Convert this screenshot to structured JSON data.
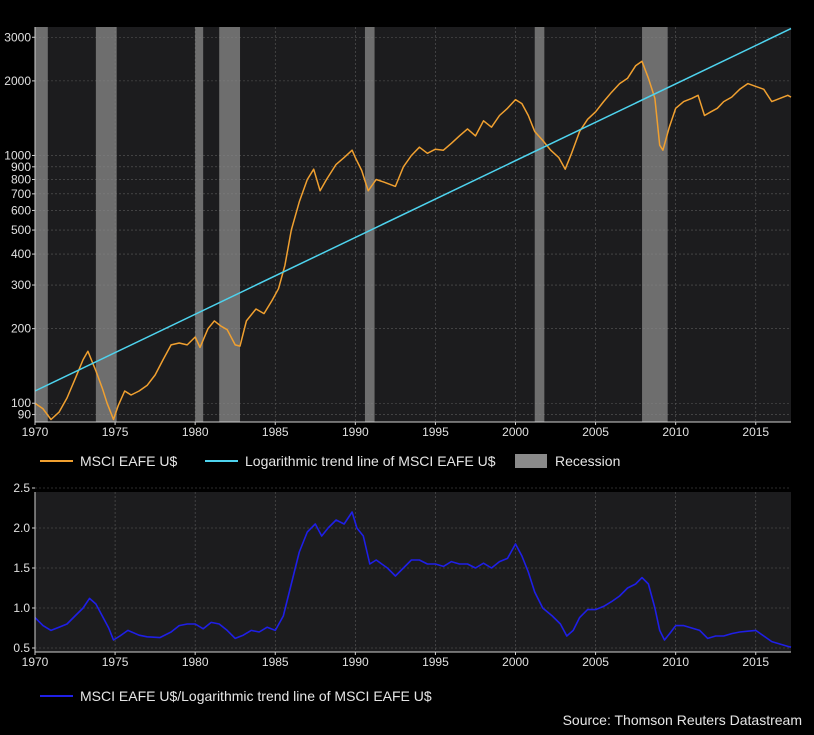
{
  "colors": {
    "background": "#000000",
    "plot_background": "#1c1c1e",
    "grid": "#5a5a5a",
    "index_line": "#f0a030",
    "trend_line": "#4ed3ee",
    "recession": "#8a8a8a",
    "ratio_line": "#1f1fe6",
    "text": "#e6e6e6"
  },
  "chart_data": [
    {
      "type": "line",
      "x_start": 1970,
      "x_end": 2017.2,
      "xticks": [
        1970,
        1975,
        1980,
        1985,
        1990,
        1995,
        2000,
        2005,
        2010,
        2015
      ],
      "y_scale": "log",
      "ylim": [
        84,
        3300
      ],
      "yticks": [
        90,
        100,
        200,
        300,
        400,
        500,
        600,
        700,
        800,
        900,
        1000,
        2000,
        3000
      ],
      "grid": true,
      "recessions": [
        {
          "start": 1970.0,
          "end": 1970.8
        },
        {
          "start": 1973.8,
          "end": 1975.1
        },
        {
          "start": 1980.0,
          "end": 1980.5
        },
        {
          "start": 1981.5,
          "end": 1982.8
        },
        {
          "start": 1990.6,
          "end": 1991.2
        },
        {
          "start": 2001.2,
          "end": 2001.8
        },
        {
          "start": 2007.9,
          "end": 2009.5
        }
      ],
      "series": [
        {
          "name": "MSCI EAFE U$",
          "color_key": "index_line",
          "x": [
            1970.0,
            1970.5,
            1971.0,
            1971.5,
            1972.0,
            1972.5,
            1973.0,
            1973.3,
            1973.8,
            1974.2,
            1974.5,
            1974.9,
            1975.2,
            1975.6,
            1976.0,
            1976.5,
            1977.0,
            1977.5,
            1978.0,
            1978.5,
            1979.0,
            1979.5,
            1980.0,
            1980.3,
            1980.8,
            1981.2,
            1981.6,
            1982.0,
            1982.5,
            1982.8,
            1983.2,
            1983.8,
            1984.3,
            1984.8,
            1985.2,
            1985.6,
            1986.0,
            1986.5,
            1987.0,
            1987.4,
            1987.8,
            1988.2,
            1988.8,
            1989.3,
            1989.8,
            1990.0,
            1990.4,
            1990.8,
            1991.3,
            1991.8,
            1992.5,
            1993.0,
            1993.5,
            1994.0,
            1994.5,
            1995.0,
            1995.5,
            1996.0,
            1996.5,
            1997.0,
            1997.5,
            1998.0,
            1998.5,
            1999.0,
            1999.5,
            2000.0,
            2000.4,
            2000.8,
            2001.2,
            2001.7,
            2002.2,
            2002.7,
            2003.1,
            2003.5,
            2004.0,
            2004.5,
            2005.0,
            2005.5,
            2006.0,
            2006.5,
            2007.0,
            2007.5,
            2007.9,
            2008.3,
            2008.7,
            2009.0,
            2009.2,
            2009.6,
            2010.0,
            2010.5,
            2011.0,
            2011.4,
            2011.8,
            2012.2,
            2012.6,
            2013.0,
            2013.5,
            2014.0,
            2014.5,
            2015.0,
            2015.5,
            2016.0,
            2016.5,
            2017.0,
            2017.2
          ],
          "values": [
            100,
            95,
            86,
            92,
            105,
            125,
            150,
            162,
            135,
            115,
            100,
            86,
            98,
            112,
            108,
            112,
            118,
            130,
            150,
            172,
            175,
            172,
            185,
            168,
            200,
            215,
            205,
            198,
            172,
            170,
            215,
            240,
            230,
            260,
            290,
            360,
            500,
            650,
            800,
            880,
            720,
            800,
            920,
            980,
            1050,
            980,
            870,
            720,
            800,
            780,
            750,
            900,
            1000,
            1080,
            1020,
            1060,
            1050,
            1120,
            1200,
            1280,
            1200,
            1380,
            1300,
            1450,
            1550,
            1680,
            1620,
            1450,
            1250,
            1150,
            1050,
            980,
            880,
            1020,
            1250,
            1400,
            1500,
            1650,
            1800,
            1950,
            2050,
            2300,
            2400,
            2050,
            1700,
            1100,
            1050,
            1300,
            1550,
            1650,
            1700,
            1750,
            1450,
            1500,
            1550,
            1650,
            1720,
            1850,
            1950,
            1900,
            1850,
            1650,
            1700,
            1750,
            1720
          ]
        },
        {
          "name": "Logarithmic trend line of MSCI EAFE U$",
          "color_key": "trend_line",
          "x": [
            1970.0,
            2017.2
          ],
          "values": [
            112,
            3250
          ]
        },
        {
          "name": "Recession",
          "color_key": "recession",
          "x": [],
          "values": []
        }
      ]
    },
    {
      "type": "line",
      "x_start": 1970,
      "x_end": 2017.2,
      "xticks": [
        1970,
        1975,
        1980,
        1985,
        1990,
        1995,
        2000,
        2005,
        2010,
        2015
      ],
      "ylim": [
        0.45,
        2.45
      ],
      "yticks": [
        0.5,
        1.0,
        1.5,
        2.0,
        2.5
      ],
      "ytick_labels": [
        "0.5",
        "1.0",
        "1.5",
        "2.0",
        "2.5"
      ],
      "grid": true,
      "series": [
        {
          "name": "MSCI EAFE U$/Logarithmic trend line of MSCI EAFE U$",
          "color_key": "ratio_line",
          "x": [
            1970.0,
            1970.5,
            1971.0,
            1971.5,
            1972.0,
            1972.5,
            1973.0,
            1973.4,
            1973.8,
            1974.2,
            1974.6,
            1974.9,
            1975.3,
            1975.8,
            1976.5,
            1977.0,
            1977.8,
            1978.5,
            1979.0,
            1979.5,
            1980.0,
            1980.5,
            1981.0,
            1981.5,
            1982.0,
            1982.5,
            1983.0,
            1983.5,
            1984.0,
            1984.5,
            1985.0,
            1985.5,
            1986.0,
            1986.5,
            1987.0,
            1987.5,
            1987.9,
            1988.3,
            1988.8,
            1989.3,
            1989.8,
            1990.1,
            1990.5,
            1990.9,
            1991.3,
            1992.0,
            1992.5,
            1993.0,
            1993.5,
            1994.0,
            1994.5,
            1995.0,
            1995.5,
            1996.0,
            1996.5,
            1997.0,
            1997.5,
            1998.0,
            1998.5,
            1999.0,
            1999.5,
            2000.0,
            2000.4,
            2000.8,
            2001.2,
            2001.7,
            2002.3,
            2002.8,
            2003.2,
            2003.6,
            2004.0,
            2004.5,
            2005.0,
            2005.5,
            2006.0,
            2006.5,
            2007.0,
            2007.5,
            2007.9,
            2008.3,
            2008.7,
            2009.0,
            2009.3,
            2009.7,
            2010.0,
            2010.5,
            2011.0,
            2011.5,
            2012.0,
            2012.5,
            2013.0,
            2013.5,
            2014.0,
            2014.5,
            2015.0,
            2015.5,
            2016.0,
            2016.5,
            2017.0,
            2017.2
          ],
          "values": [
            0.88,
            0.78,
            0.72,
            0.76,
            0.8,
            0.9,
            1.0,
            1.12,
            1.05,
            0.9,
            0.75,
            0.6,
            0.65,
            0.72,
            0.66,
            0.64,
            0.63,
            0.7,
            0.78,
            0.8,
            0.8,
            0.74,
            0.82,
            0.8,
            0.72,
            0.62,
            0.66,
            0.72,
            0.7,
            0.76,
            0.72,
            0.9,
            1.3,
            1.7,
            1.95,
            2.05,
            1.9,
            2.0,
            2.1,
            2.05,
            2.2,
            2.0,
            1.9,
            1.55,
            1.6,
            1.5,
            1.4,
            1.5,
            1.6,
            1.6,
            1.55,
            1.55,
            1.52,
            1.58,
            1.55,
            1.55,
            1.5,
            1.56,
            1.5,
            1.58,
            1.62,
            1.8,
            1.65,
            1.45,
            1.2,
            1.0,
            0.9,
            0.8,
            0.65,
            0.72,
            0.88,
            0.98,
            0.98,
            1.02,
            1.08,
            1.15,
            1.25,
            1.3,
            1.38,
            1.3,
            1.0,
            0.72,
            0.6,
            0.7,
            0.78,
            0.78,
            0.75,
            0.72,
            0.62,
            0.65,
            0.65,
            0.68,
            0.7,
            0.71,
            0.72,
            0.65,
            0.58,
            0.55,
            0.52,
            0.51
          ]
        }
      ]
    }
  ],
  "legend_top": {
    "index_label": "MSCI EAFE U$",
    "trend_label": "Logarithmic trend line of MSCI EAFE U$",
    "recession_label": "Recession"
  },
  "legend_bottom": {
    "ratio_label": "MSCI EAFE U$/Logarithmic trend line of MSCI EAFE U$"
  },
  "source": "Source: Thomson Reuters Datastream"
}
